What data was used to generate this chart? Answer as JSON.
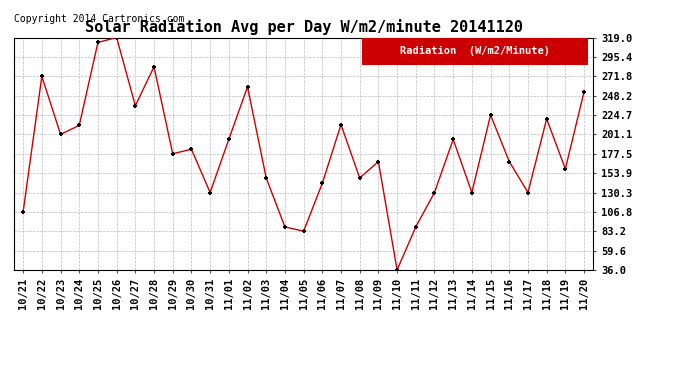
{
  "title": "Solar Radiation Avg per Day W/m2/minute 20141120",
  "copyright": "Copyright 2014 Cartronics.com",
  "legend_label": "Radiation  (W/m2/Minute)",
  "dates": [
    "10/21",
    "10/22",
    "10/23",
    "10/24",
    "10/25",
    "10/26",
    "10/27",
    "10/28",
    "10/29",
    "10/30",
    "10/31",
    "11/01",
    "11/02",
    "11/03",
    "11/04",
    "11/05",
    "11/06",
    "11/07",
    "11/08",
    "11/09",
    "11/10",
    "11/11",
    "11/12",
    "11/13",
    "11/14",
    "11/15",
    "11/16",
    "11/17",
    "11/18",
    "11/19",
    "11/20"
  ],
  "values": [
    106.8,
    271.8,
    201.1,
    212.0,
    313.0,
    319.0,
    236.0,
    283.4,
    177.5,
    183.0,
    130.3,
    195.0,
    259.0,
    148.0,
    88.5,
    83.2,
    141.5,
    213.0,
    148.0,
    168.0,
    36.0,
    88.5,
    130.3,
    195.0,
    130.3,
    224.7,
    168.0,
    130.3,
    220.0,
    159.0,
    253.0
  ],
  "line_color": "#cc0000",
  "marker_color": "#000000",
  "background_color": "#ffffff",
  "grid_color": "#bbbbbb",
  "ylim_min": 36.0,
  "ylim_max": 319.0,
  "yticks": [
    36.0,
    59.6,
    83.2,
    106.8,
    130.3,
    153.9,
    177.5,
    201.1,
    224.7,
    248.2,
    271.8,
    295.4,
    319.0
  ],
  "title_fontsize": 11,
  "tick_fontsize": 7.5,
  "copyright_fontsize": 7,
  "legend_bg": "#cc0000",
  "legend_text_color": "#ffffff",
  "legend_fontsize": 7.5
}
